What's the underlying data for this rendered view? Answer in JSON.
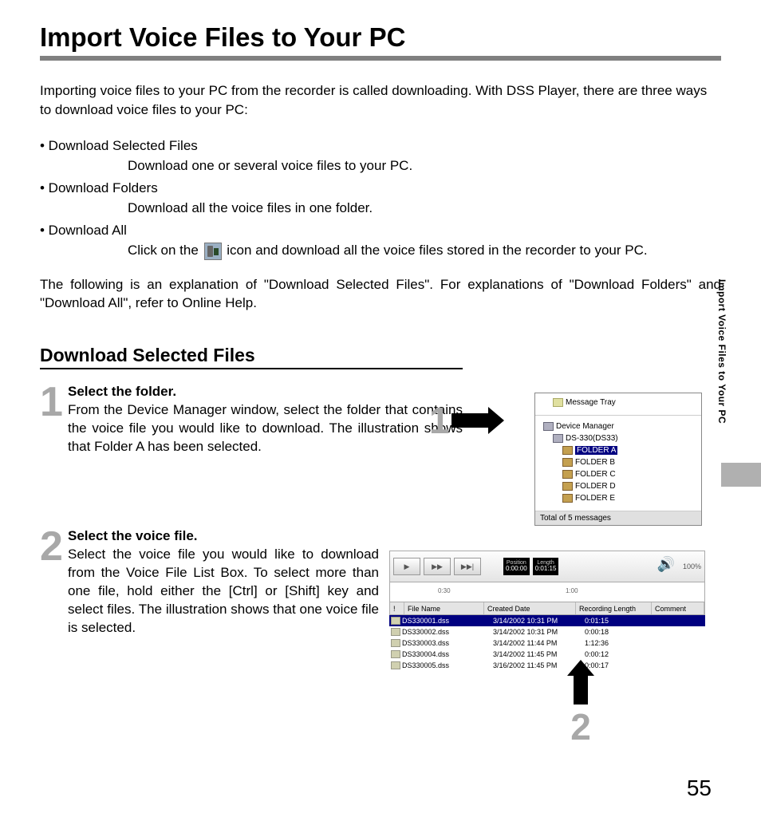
{
  "title": "Import Voice Files to Your PC",
  "intro": "Importing voice files to your PC from the recorder is called downloading. With DSS Player, there are three ways to download voice files to your PC:",
  "bullets": [
    {
      "head": "• Download Selected Files",
      "desc": "Download one or several voice files to your PC."
    },
    {
      "head": "• Download Folders",
      "desc": "Download all the voice files in one folder."
    },
    {
      "head": "• Download All",
      "desc_pre": "Click on the ",
      "has_icon": true,
      "desc_post": " icon and download all the voice files stored in the recorder to your PC."
    }
  ],
  "followup": "The following is an explanation of \"Download Selected Files\". For explanations of \"Download Folders\" and \"Download All\", refer to Online Help.",
  "section": "Download Selected Files",
  "steps": [
    {
      "num": "1",
      "heading": "Select the folder.",
      "body": "From the Device Manager window, select the folder that contains the voice file you would like to download. The illustration shows that Folder A has been selected."
    },
    {
      "num": "2",
      "heading": "Select the voice file.",
      "body": "Select the voice file you would like to download from the Voice File List Box. To select more than one file, hold either the [Ctrl] or [Shift] key and select files. The illustration shows that one voice file is selected."
    }
  ],
  "shot1": {
    "message_tray": "Message Tray",
    "device_manager": "Device Manager",
    "device": "DS-330(DS33)",
    "folders": [
      "FOLDER A",
      "FOLDER B",
      "FOLDER C",
      "FOLDER D",
      "FOLDER E"
    ],
    "selected_index": 0,
    "status": "Total of 5 messages"
  },
  "shot2": {
    "player": {
      "buttons": [
        "▶",
        "▶▶",
        "▶▶|"
      ],
      "position_label": "Position",
      "position": "0:00:00",
      "length_label": "Length",
      "length": "0:01:15",
      "zoom": "100%"
    },
    "ruler": {
      "a": "0:30",
      "b": "1:00"
    },
    "columns": {
      "mark": "!",
      "name": "File Name",
      "date": "Created Date",
      "len": "Recording Length",
      "cmt": "Comment"
    },
    "rows": [
      {
        "name": "DS330001.dss",
        "date": "3/14/2002 10:31 PM",
        "len": "0:01:15",
        "selected": true
      },
      {
        "name": "DS330002.dss",
        "date": "3/14/2002 10:31 PM",
        "len": "0:00:18",
        "selected": false
      },
      {
        "name": "DS330003.dss",
        "date": "3/14/2002 11:44 PM",
        "len": "1:12:36",
        "selected": false
      },
      {
        "name": "DS330004.dss",
        "date": "3/14/2002 11:45 PM",
        "len": "0:00:12",
        "selected": false
      },
      {
        "name": "DS330005.dss",
        "date": "3/16/2002 11:45 PM",
        "len": "0:00:17",
        "selected": false
      }
    ]
  },
  "callouts": {
    "one": "1",
    "two": "2"
  },
  "page_number": "55",
  "side_tab": "Import Voice Files to Your PC",
  "colors": {
    "rule": "#808080",
    "grey_num": "#a8a8a8",
    "sel_bg": "#000080",
    "panel_bg": "#e8e8e8"
  }
}
